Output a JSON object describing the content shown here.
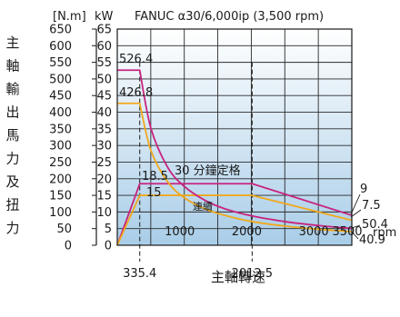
{
  "chart_data": {
    "type": "line",
    "title": "FANUC α30/6,000ip (3,500 rpm)",
    "xlabel": "主軸轉速",
    "x_unit": "rpm",
    "ylabel_left": "主軸輸出馬力及扭力",
    "y_unit_torque": "[N.m]",
    "y_unit_power": "kW",
    "xlim": [
      0,
      3500
    ],
    "ylim_power": [
      0,
      65
    ],
    "ylim_torque": [
      0,
      650
    ],
    "x_ticks": [
      "1000",
      "2000",
      "3000",
      "3500"
    ],
    "y_ticks_power": [
      "0",
      "5",
      "10",
      "15",
      "20",
      "25",
      "30",
      "35",
      "40",
      "45",
      "50",
      "55",
      "60",
      "65"
    ],
    "y_ticks_torque": [
      "0",
      "50",
      "100",
      "150",
      "200",
      "250",
      "300",
      "350",
      "400",
      "450",
      "500",
      "550",
      "600",
      "650"
    ],
    "x_markers": [
      {
        "x": 335.4,
        "label": "335.4"
      },
      {
        "x": 2012.5,
        "label": "2012.5"
      }
    ],
    "series": [
      {
        "name": "30 分鐘定格",
        "unit": "kW",
        "color": "#c8237f",
        "x": [
          0,
          335.4,
          2012.5,
          3500
        ],
        "y": [
          0,
          18.5,
          18.5,
          9
        ]
      },
      {
        "name": "連續",
        "unit": "kW",
        "color": "#f0a81c",
        "x": [
          0,
          335.4,
          2012.5,
          3500
        ],
        "y": [
          0,
          15,
          15,
          7.5
        ]
      },
      {
        "unit": "N.m",
        "color": "#c8237f",
        "x": [
          0,
          335.4,
          500,
          750,
          1000,
          1300,
          1600,
          2012.5,
          2500,
          3000,
          3500
        ],
        "y": [
          526.4,
          526.4,
          353,
          235,
          177,
          136,
          110,
          88,
          71.2,
          59.4,
          50.4
        ]
      },
      {
        "unit": "N.m",
        "color": "#f0a81c",
        "x": [
          0,
          335.4,
          500,
          750,
          1000,
          1300,
          1600,
          2012.5,
          2500,
          3000,
          3500
        ],
        "y": [
          426.8,
          426.8,
          286,
          191,
          143,
          110,
          90,
          71.2,
          57.6,
          48.0,
          40.9
        ]
      }
    ],
    "annotations": {
      "torque_30min_max": "526.4",
      "torque_cont_max": "426.8",
      "power_30min": "18.5",
      "power_cont": "15",
      "power_30min_end": "9",
      "power_cont_end": "7.5",
      "torque_30min_end": "50.4",
      "torque_cont_end": "40.9"
    },
    "grid": true
  }
}
